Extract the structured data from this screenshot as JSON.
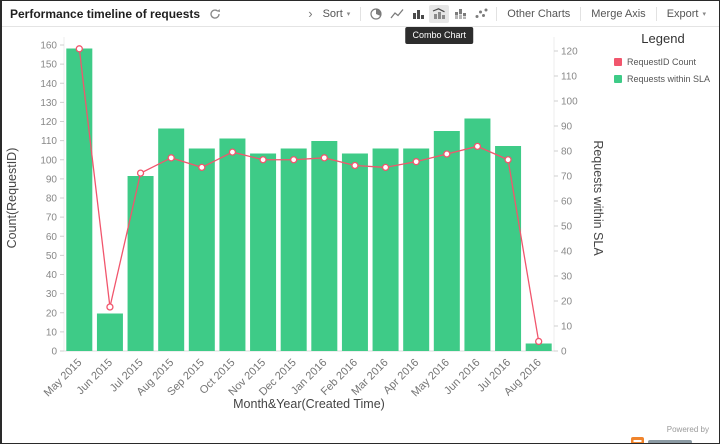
{
  "header": {
    "title": "Performance timeline of requests",
    "sort_label": "Sort",
    "other_charts_label": "Other Charts",
    "merge_axis_label": "Merge Axis",
    "export_label": "Export",
    "combo_tooltip": "Combo Chart"
  },
  "legend": {
    "title": "Legend",
    "items": [
      {
        "label": "RequestID Count",
        "color": "#f1566d"
      },
      {
        "label": "Requests within SLA",
        "color": "#3ecb87"
      }
    ]
  },
  "footer": {
    "powered_by": "Powered by"
  },
  "chart_data": {
    "type": "combo",
    "title": "Performance timeline of requests",
    "xlabel": "Month&Year(Created Time)",
    "categories": [
      "May 2015",
      "Jun 2015",
      "Jul 2015",
      "Aug 2015",
      "Sep 2015",
      "Oct 2015",
      "Nov 2015",
      "Dec 2015",
      "Jan 2016",
      "Feb 2016",
      "Mar 2016",
      "Apr 2016",
      "May 2016",
      "Jun 2016",
      "Jul 2016",
      "Aug 2016"
    ],
    "series": [
      {
        "name": "Requests within SLA",
        "type": "bar",
        "axis": "right",
        "color": "#3ecb87",
        "values": [
          121,
          15,
          70,
          89,
          81,
          85,
          79,
          81,
          84,
          79,
          81,
          81,
          88,
          93,
          82,
          3
        ]
      },
      {
        "name": "RequestID Count",
        "type": "line",
        "axis": "left",
        "color": "#f1566d",
        "values": [
          158,
          23,
          93,
          101,
          96,
          104,
          100,
          100,
          101,
          97,
          96,
          99,
          103,
          107,
          100,
          5
        ]
      }
    ],
    "left_axis": {
      "label": "Count(RequestID)",
      "min": 0,
      "max": 160,
      "step": 10
    },
    "right_axis": {
      "label": "Requests within SLA",
      "min": 0,
      "max": 120,
      "step": 10
    },
    "grid": false,
    "legend_position": "right"
  }
}
